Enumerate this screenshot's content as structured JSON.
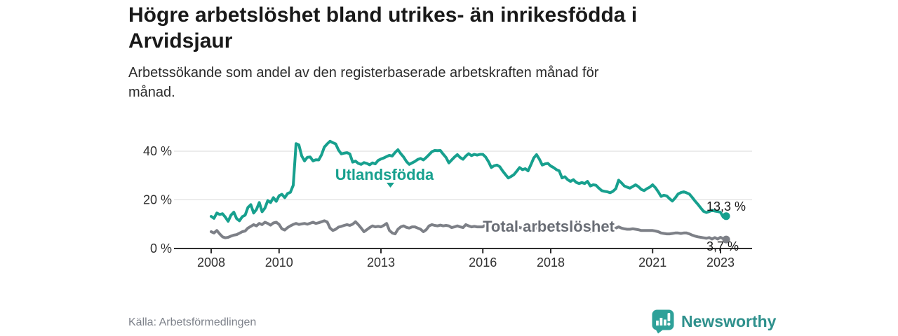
{
  "title": "Högre arbetslöshet bland utrikes- än inrikesfödda i Arvidsjaur",
  "subtitle": "Arbetssökande som andel av den registerbaserade arbetskraften månad för månad.",
  "source": "Källa: Arbetsförmedlingen",
  "brand": {
    "name": "Newsworthy",
    "color": "#2e908c",
    "icon": "newsworthy-speech-bubble-bar-chart-icon"
  },
  "chart_data": {
    "type": "line",
    "title": "Högre arbetslöshet bland utrikes- än inrikesfödda i Arvidsjaur",
    "xlabel": "",
    "ylabel": "",
    "unit": "%",
    "grid": "horizontal",
    "x_start": 2008.0,
    "x_interval_months": 1,
    "x_end": 2023.17,
    "xlim": [
      2007.9,
      2024.0
    ],
    "ylim": [
      0,
      46
    ],
    "yticks": [
      {
        "value": 0,
        "label": "0 %"
      },
      {
        "value": 20,
        "label": "20 %"
      },
      {
        "value": 40,
        "label": "40 %"
      }
    ],
    "xticks": [
      {
        "value": 2008,
        "label": "2008"
      },
      {
        "value": 2010,
        "label": "2010"
      },
      {
        "value": 2013,
        "label": "2013"
      },
      {
        "value": 2016,
        "label": "2016"
      },
      {
        "value": 2018,
        "label": "2018"
      },
      {
        "value": 2021,
        "label": "2021"
      },
      {
        "value": 2023,
        "label": "2023"
      }
    ],
    "series": [
      {
        "name": "Utlandsfödda",
        "color": "#17a08e",
        "end_label": "13,3 %",
        "values": [
          13.2,
          12.4,
          14.6,
          14.0,
          14.3,
          12.9,
          11.2,
          13.7,
          14.9,
          12.3,
          11.4,
          13.1,
          13.7,
          16.9,
          18.0,
          14.6,
          16.0,
          18.9,
          15.1,
          16.6,
          19.7,
          18.9,
          20.9,
          19.4,
          21.7,
          22.3,
          20.9,
          22.6,
          23.1,
          26.0,
          43.1,
          42.6,
          38.0,
          36.0,
          37.5,
          37.6,
          36.0,
          36.5,
          36.4,
          38.5,
          41.7,
          43.0,
          44.1,
          43.5,
          43.0,
          40.5,
          38.9,
          39.2,
          39.4,
          38.9,
          35.5,
          35.9,
          35.0,
          34.6,
          35.3,
          35.0,
          34.4,
          35.2,
          34.8,
          36.2,
          36.8,
          37.2,
          37.8,
          38.3,
          38.0,
          39.5,
          40.6,
          39.0,
          37.6,
          35.8,
          34.6,
          35.2,
          35.8,
          36.6,
          37.0,
          36.4,
          37.4,
          38.6,
          39.8,
          40.3,
          40.2,
          40.3,
          38.8,
          37.4,
          35.2,
          36.4,
          37.6,
          38.6,
          37.4,
          36.7,
          38.0,
          39.0,
          38.2,
          38.7,
          38.4,
          38.7,
          38.7,
          37.6,
          35.7,
          33.3,
          34.0,
          34.3,
          33.6,
          31.9,
          30.4,
          29.0,
          29.6,
          30.4,
          31.8,
          33.3,
          32.4,
          32.8,
          31.9,
          34.5,
          37.2,
          38.6,
          36.7,
          34.3,
          34.8,
          35.0,
          33.9,
          33.3,
          32.4,
          31.9,
          29.0,
          29.5,
          28.3,
          27.6,
          28.3,
          27.2,
          26.7,
          27.1,
          26.7,
          27.6,
          25.7,
          26.2,
          26.0,
          24.8,
          23.8,
          23.5,
          23.3,
          22.9,
          23.5,
          24.6,
          28.1,
          27.0,
          25.7,
          25.2,
          24.8,
          25.5,
          26.2,
          25.4,
          24.3,
          23.8,
          24.6,
          25.2,
          26.2,
          25.0,
          23.3,
          21.4,
          21.9,
          21.6,
          20.5,
          19.5,
          20.8,
          22.4,
          23.0,
          23.3,
          22.9,
          22.4,
          21.0,
          19.5,
          18.2,
          16.7,
          15.3,
          14.8,
          15.2,
          15.7,
          15.4,
          15.2,
          14.9,
          12.9,
          13.3
        ]
      },
      {
        "name": "Total arbetslöshet",
        "color": "#7d8087",
        "end_label": "3,7 %",
        "values": [
          6.9,
          6.4,
          7.4,
          6.0,
          4.8,
          4.4,
          4.6,
          5.1,
          5.5,
          5.7,
          6.3,
          6.9,
          7.2,
          8.4,
          9.1,
          9.8,
          9.3,
          10.3,
          9.8,
          10.8,
          10.3,
          9.6,
          10.5,
          10.8,
          9.9,
          8.1,
          7.6,
          8.6,
          9.3,
          9.9,
          10.3,
          9.9,
          10.1,
          10.3,
          10.0,
          10.4,
          10.8,
          10.3,
          10.6,
          11.0,
          11.4,
          10.9,
          8.4,
          7.4,
          7.9,
          8.8,
          9.1,
          9.5,
          9.8,
          9.5,
          10.0,
          11.0,
          9.8,
          8.4,
          6.9,
          7.7,
          8.6,
          9.3,
          8.9,
          9.1,
          8.9,
          9.5,
          10.3,
          7.4,
          6.4,
          6.0,
          7.9,
          8.9,
          9.3,
          8.7,
          8.4,
          8.9,
          8.9,
          8.4,
          7.9,
          6.9,
          7.7,
          9.3,
          9.8,
          9.5,
          9.3,
          9.6,
          9.3,
          9.5,
          9.3,
          8.6,
          8.9,
          9.3,
          8.9,
          8.6,
          9.8,
          9.3,
          8.9,
          9.1,
          8.9,
          8.9,
          8.9,
          9.8,
          9.3,
          8.9,
          8.6,
          8.4,
          8.1,
          7.9,
          7.4,
          7.7,
          8.4,
          8.6,
          8.9,
          8.6,
          8.4,
          8.1,
          7.9,
          8.4,
          8.6,
          8.4,
          8.1,
          7.9,
          7.7,
          7.9,
          7.9,
          8.1,
          8.4,
          8.1,
          7.7,
          7.4,
          7.2,
          7.4,
          7.7,
          7.9,
          7.7,
          7.9,
          7.9,
          7.4,
          6.9,
          7.2,
          7.7,
          8.4,
          7.9,
          7.4,
          7.2,
          7.4,
          7.9,
          8.4,
          8.9,
          8.4,
          8.1,
          7.9,
          7.9,
          8.1,
          7.9,
          7.7,
          7.4,
          7.4,
          7.4,
          7.4,
          7.4,
          7.2,
          6.9,
          6.4,
          6.2,
          6.0,
          6.0,
          6.2,
          6.4,
          6.4,
          6.2,
          6.4,
          6.4,
          6.0,
          5.5,
          5.1,
          4.8,
          4.6,
          4.4,
          4.2,
          4.5,
          3.9,
          4.5,
          3.9,
          4.6,
          4.0,
          3.7
        ]
      }
    ]
  }
}
